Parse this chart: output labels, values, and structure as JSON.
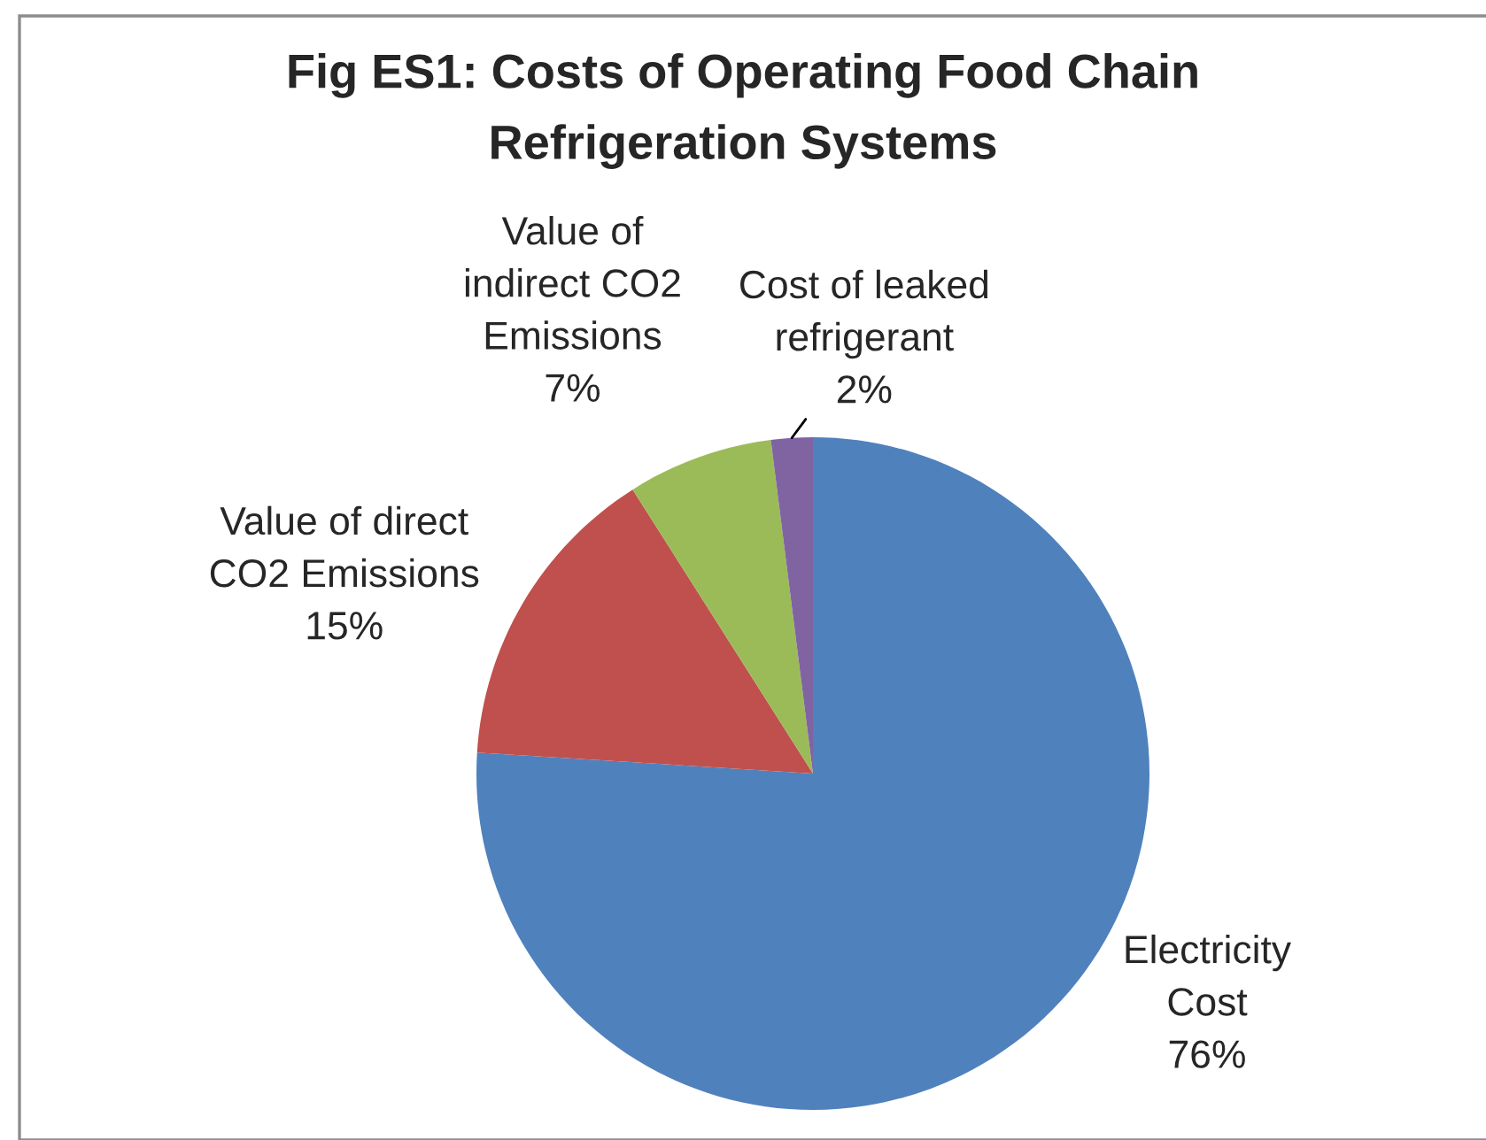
{
  "chart_data": {
    "type": "pie",
    "title": "Fig ES1: Costs of Operating Food Chain\nRefrigeration Systems",
    "categories": [
      "Electricity\nCost",
      "Value of direct\nCO2 Emissions",
      "Value of\nindirect CO2\nEmissions",
      "Cost of leaked\nrefrigerant"
    ],
    "values": [
      76,
      15,
      7,
      2
    ],
    "value_labels": [
      "76%",
      "15%",
      "7%",
      "2%"
    ],
    "colors": [
      "#4f81bd",
      "#c0504d",
      "#9bbb59",
      "#8064a2"
    ]
  }
}
